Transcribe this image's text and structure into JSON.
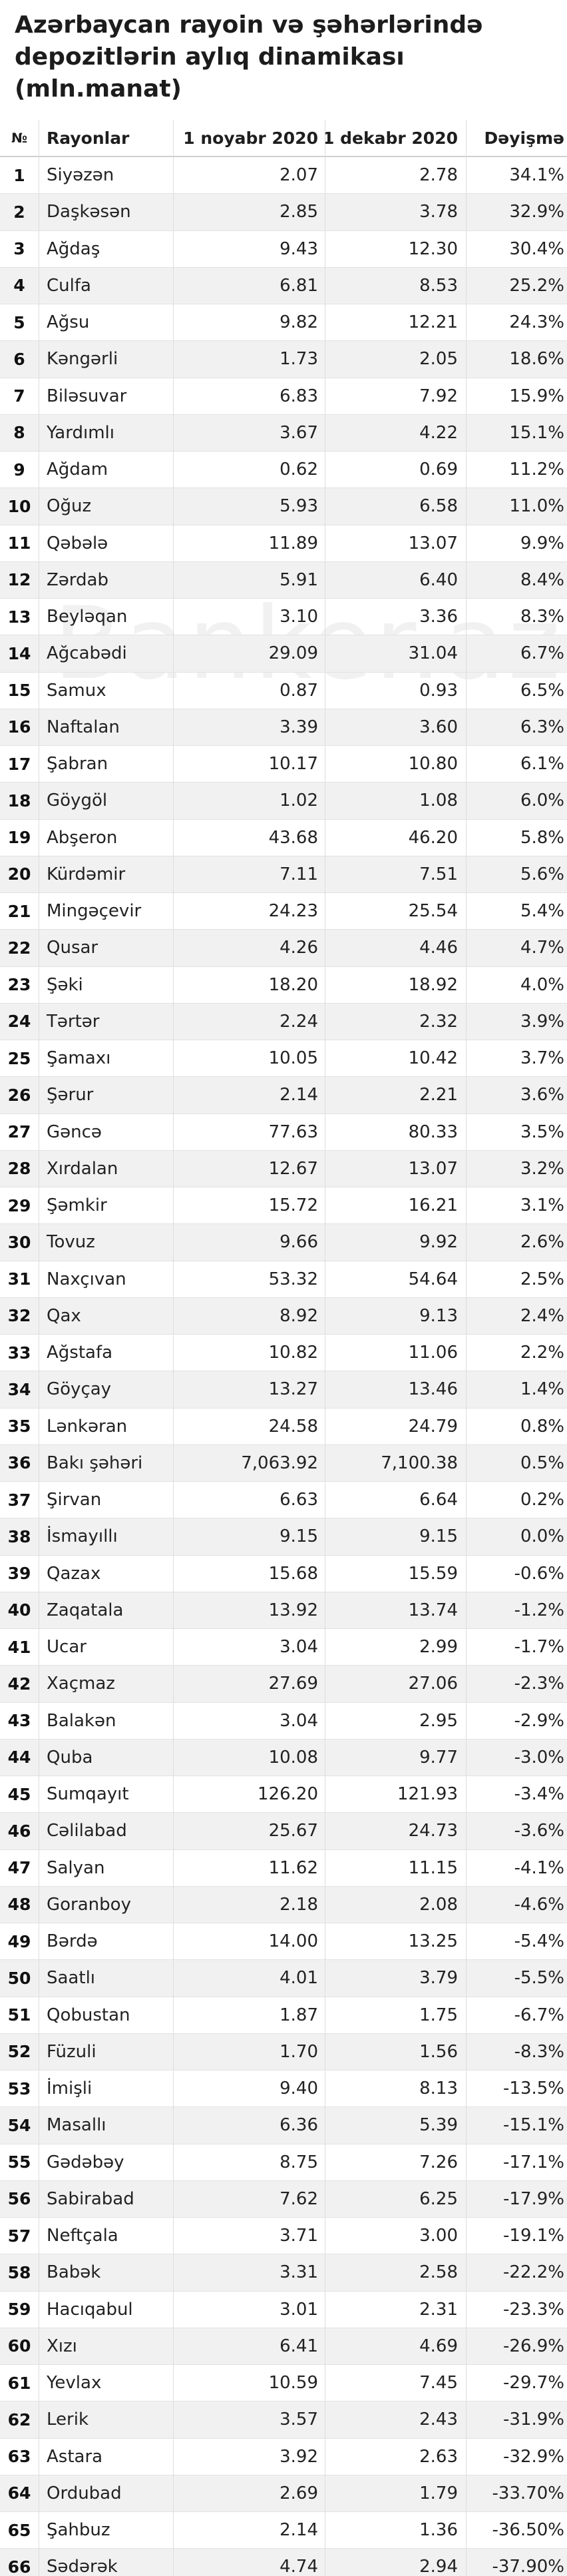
{
  "title": "Azərbaycan rayoin və şəhərlərində depozitlərin aylıq dinamikası (mln.manat)",
  "watermark": "Banker.az",
  "chart_data": {
    "type": "table",
    "title": "Azərbaycan rayoin və şəhərlərində depozitlərin aylıq dinamikası (mln.manat)",
    "columns": [
      "№",
      "Rayonlar",
      "1 noyabr 2020",
      "1 dekabr 2020",
      "Dəyişmə"
    ],
    "rows": [
      [
        "1",
        "Siyəzən",
        "2.07",
        "2.78",
        "34.1%"
      ],
      [
        "2",
        "Daşkəsən",
        "2.85",
        "3.78",
        "32.9%"
      ],
      [
        "3",
        "Ağdaş",
        "9.43",
        "12.30",
        "30.4%"
      ],
      [
        "4",
        "Culfa",
        "6.81",
        "8.53",
        "25.2%"
      ],
      [
        "5",
        "Ağsu",
        "9.82",
        "12.21",
        "24.3%"
      ],
      [
        "6",
        "Kəngərli",
        "1.73",
        "2.05",
        "18.6%"
      ],
      [
        "7",
        "Biləsuvar",
        "6.83",
        "7.92",
        "15.9%"
      ],
      [
        "8",
        "Yardımlı",
        "3.67",
        "4.22",
        "15.1%"
      ],
      [
        "9",
        "Ağdam",
        "0.62",
        "0.69",
        "11.2%"
      ],
      [
        "10",
        "Oğuz",
        "5.93",
        "6.58",
        "11.0%"
      ],
      [
        "11",
        "Qəbələ",
        "11.89",
        "13.07",
        "9.9%"
      ],
      [
        "12",
        "Zərdab",
        "5.91",
        "6.40",
        "8.4%"
      ],
      [
        "13",
        "Beyləqan",
        "3.10",
        "3.36",
        "8.3%"
      ],
      [
        "14",
        "Ağcabədi",
        "29.09",
        "31.04",
        "6.7%"
      ],
      [
        "15",
        "Samux",
        "0.87",
        "0.93",
        "6.5%"
      ],
      [
        "16",
        "Naftalan",
        "3.39",
        "3.60",
        "6.3%"
      ],
      [
        "17",
        "Şabran",
        "10.17",
        "10.80",
        "6.1%"
      ],
      [
        "18",
        "Göygöl",
        "1.02",
        "1.08",
        "6.0%"
      ],
      [
        "19",
        "Abşeron",
        "43.68",
        "46.20",
        "5.8%"
      ],
      [
        "20",
        "Kürdəmir",
        "7.11",
        "7.51",
        "5.6%"
      ],
      [
        "21",
        "Mingəçevir",
        "24.23",
        "25.54",
        "5.4%"
      ],
      [
        "22",
        "Qusar",
        "4.26",
        "4.46",
        "4.7%"
      ],
      [
        "23",
        "Şəki",
        "18.20",
        "18.92",
        "4.0%"
      ],
      [
        "24",
        "Tərtər",
        "2.24",
        "2.32",
        "3.9%"
      ],
      [
        "25",
        "Şamaxı",
        "10.05",
        "10.42",
        "3.7%"
      ],
      [
        "26",
        "Şərur",
        "2.14",
        "2.21",
        "3.6%"
      ],
      [
        "27",
        "Gəncə",
        "77.63",
        "80.33",
        "3.5%"
      ],
      [
        "28",
        "Xırdalan",
        "12.67",
        "13.07",
        "3.2%"
      ],
      [
        "29",
        "Şəmkir",
        "15.72",
        "16.21",
        "3.1%"
      ],
      [
        "30",
        "Tovuz",
        "9.66",
        "9.92",
        "2.6%"
      ],
      [
        "31",
        "Naxçıvan",
        "53.32",
        "54.64",
        "2.5%"
      ],
      [
        "32",
        "Qax",
        "8.92",
        "9.13",
        "2.4%"
      ],
      [
        "33",
        "Ağstafa",
        "10.82",
        "11.06",
        "2.2%"
      ],
      [
        "34",
        "Göyçay",
        "13.27",
        "13.46",
        "1.4%"
      ],
      [
        "35",
        "Lənkəran",
        "24.58",
        "24.79",
        "0.8%"
      ],
      [
        "36",
        "Bakı şəhəri",
        "7,063.92",
        "7,100.38",
        "0.5%"
      ],
      [
        "37",
        "Şirvan",
        "6.63",
        "6.64",
        "0.2%"
      ],
      [
        "38",
        "İsmayıllı",
        "9.15",
        "9.15",
        "0.0%"
      ],
      [
        "39",
        "Qazax",
        "15.68",
        "15.59",
        "-0.6%"
      ],
      [
        "40",
        "Zaqatala",
        "13.92",
        "13.74",
        "-1.2%"
      ],
      [
        "41",
        "Ucar",
        "3.04",
        "2.99",
        "-1.7%"
      ],
      [
        "42",
        "Xaçmaz",
        "27.69",
        "27.06",
        "-2.3%"
      ],
      [
        "43",
        "Balakən",
        "3.04",
        "2.95",
        "-2.9%"
      ],
      [
        "44",
        "Quba",
        "10.08",
        "9.77",
        "-3.0%"
      ],
      [
        "45",
        "Sumqayıt",
        "126.20",
        "121.93",
        "-3.4%"
      ],
      [
        "46",
        "Cəlilabad",
        "25.67",
        "24.73",
        "-3.6%"
      ],
      [
        "47",
        "Salyan",
        "11.62",
        "11.15",
        "-4.1%"
      ],
      [
        "48",
        "Goranboy",
        "2.18",
        "2.08",
        "-4.6%"
      ],
      [
        "49",
        "Bərdə",
        "14.00",
        "13.25",
        "-5.4%"
      ],
      [
        "50",
        "Saatlı",
        "4.01",
        "3.79",
        "-5.5%"
      ],
      [
        "51",
        "Qobustan",
        "1.87",
        "1.75",
        "-6.7%"
      ],
      [
        "52",
        "Füzuli",
        "1.70",
        "1.56",
        "-8.3%"
      ],
      [
        "53",
        "İmişli",
        "9.40",
        "8.13",
        "-13.5%"
      ],
      [
        "54",
        "Masallı",
        "6.36",
        "5.39",
        "-15.1%"
      ],
      [
        "55",
        "Gədəbəy",
        "8.75",
        "7.26",
        "-17.1%"
      ],
      [
        "56",
        "Sabirabad",
        "7.62",
        "6.25",
        "-17.9%"
      ],
      [
        "57",
        "Neftçala",
        "3.71",
        "3.00",
        "-19.1%"
      ],
      [
        "58",
        "Babək",
        "3.31",
        "2.58",
        "-22.2%"
      ],
      [
        "59",
        "Hacıqabul",
        "3.01",
        "2.31",
        "-23.3%"
      ],
      [
        "60",
        "Xızı",
        "6.41",
        "4.69",
        "-26.9%"
      ],
      [
        "61",
        "Yevlax",
        "10.59",
        "7.45",
        "-29.7%"
      ],
      [
        "62",
        "Lerik",
        "3.57",
        "2.43",
        "-31.9%"
      ],
      [
        "63",
        "Astara",
        "3.92",
        "2.63",
        "-32.9%"
      ],
      [
        "64",
        "Ordubad",
        "2.69",
        "1.79",
        "-33.70%"
      ],
      [
        "65",
        "Şahbuz",
        "2.14",
        "1.36",
        "-36.50%"
      ],
      [
        "66",
        "Sədərək",
        "4.74",
        "2.94",
        "-37.90%"
      ]
    ]
  }
}
